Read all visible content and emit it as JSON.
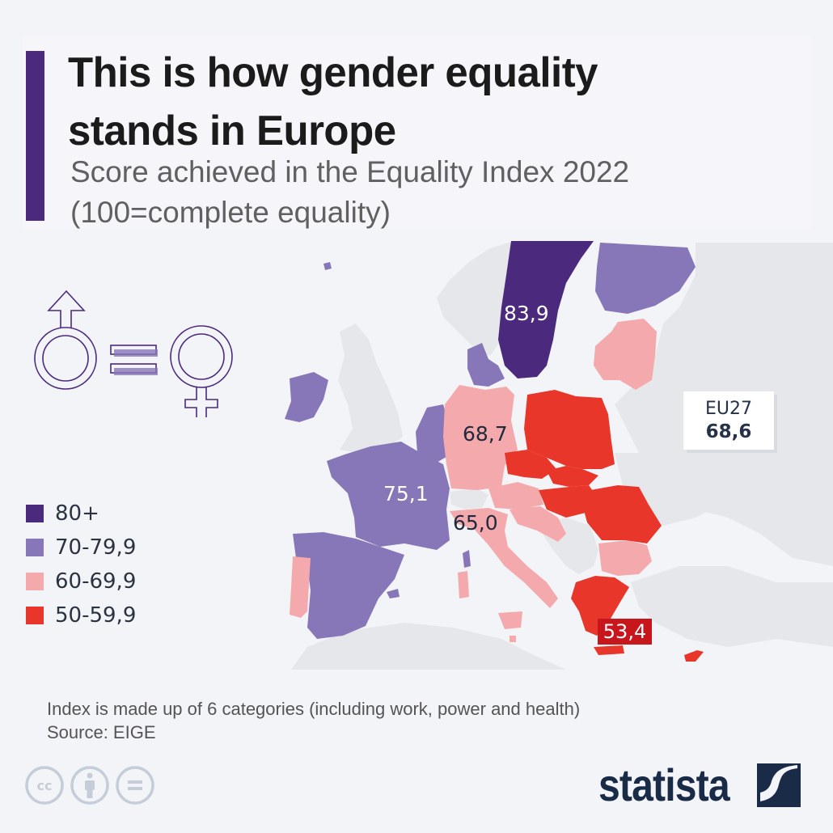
{
  "header": {
    "title_line1": "This is how gender equality",
    "title_line2": "stands in Europe",
    "subtitle_line1": "Score achieved in the Equality Index 2022",
    "subtitle_line2": "(100=complete equality)"
  },
  "colors": {
    "accent": "#4b2a7d",
    "band_80_plus": "#4b2a7d",
    "band_70_79": "#8877b8",
    "band_60_69": "#f4a9ac",
    "band_50_59": "#e8372a",
    "non_eu_land": "#e6e7ea",
    "sea": "#f3f4f8",
    "label_dark": "#1f2a3c"
  },
  "icons": {
    "gender_equality": "male-equals-female-icon",
    "cc": "creative-commons-icon",
    "attribution": "attribution-person-icon",
    "no_derivatives": "equals-no-derivatives-icon",
    "brand": "statista-logo-icon"
  },
  "legend": [
    {
      "label": "80+",
      "color": "#4b2a7d"
    },
    {
      "label": "70-79,9",
      "color": "#8877b8"
    },
    {
      "label": "60-69,9",
      "color": "#f4a9ac"
    },
    {
      "label": "50-59,9",
      "color": "#e8372a"
    }
  ],
  "chart_data": {
    "type": "choropleth",
    "title": "This is how gender equality stands in Europe",
    "subtitle": "Score achieved in the Equality Index 2022 (100=complete equality)",
    "legend_placement": "left",
    "bands": [
      "80+",
      "70-79,9",
      "60-69,9",
      "50-59,9"
    ],
    "labeled_values": [
      {
        "region": "Sweden",
        "value": "83,9",
        "band": "80+"
      },
      {
        "region": "Germany",
        "value": "68,7",
        "band": "60-69,9"
      },
      {
        "region": "France",
        "value": "75,1",
        "band": "70-79,9"
      },
      {
        "region": "Italy",
        "value": "65,0",
        "band": "60-69,9"
      },
      {
        "region": "Greece",
        "value": "53,4",
        "band": "50-59,9"
      }
    ],
    "eu_average": {
      "label": "EU27",
      "value": "68,6"
    },
    "country_bands": {
      "Sweden": "80+",
      "Finland": "70-79,9",
      "Denmark": "70-79,9",
      "Netherlands": "70-79,9",
      "Belgium": "70-79,9",
      "Luxembourg": "70-79,9",
      "France": "70-79,9",
      "Spain": "70-79,9",
      "Ireland": "70-79,9",
      "Germany": "60-69,9",
      "Austria": "60-69,9",
      "Italy": "60-69,9",
      "Slovenia": "60-69,9",
      "Croatia": "60-69,9",
      "Portugal": "60-69,9",
      "Malta": "60-69,9",
      "Estonia": "60-69,9",
      "Latvia": "60-69,9",
      "Lithuania": "60-69,9",
      "Bulgaria": "60-69,9",
      "Poland": "50-59,9",
      "Czechia": "50-59,9",
      "Slovakia": "50-59,9",
      "Hungary": "50-59,9",
      "Romania": "50-59,9",
      "Greece": "50-59,9",
      "Cyprus": "50-59,9"
    }
  },
  "labels": {
    "sweden": "83,9",
    "germany": "68,7",
    "france": "75,1",
    "italy": "65,0",
    "greece": "53,4",
    "eu_name": "EU27",
    "eu_value": "68,6"
  },
  "footer": {
    "note": "Index is made up of 6 categories (including work, power and health)",
    "source": "Source: EIGE",
    "brand": "statista"
  }
}
